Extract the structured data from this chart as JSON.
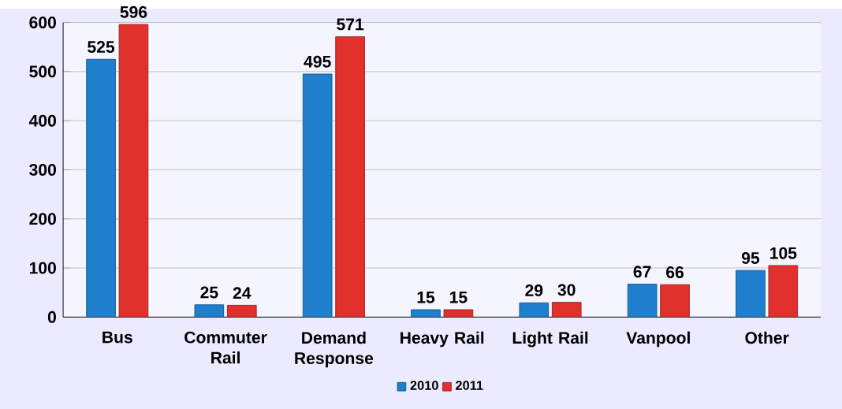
{
  "chart_data": {
    "type": "bar",
    "categories": [
      "Bus",
      "Commuter Rail",
      "Demand Response",
      "Heavy  Rail",
      "Light  Rail",
      "Vanpool",
      "Other"
    ],
    "series": [
      {
        "name": "2010",
        "color": "#1f7fcc",
        "values": [
          525,
          25,
          495,
          15,
          29,
          67,
          95
        ]
      },
      {
        "name": "2011",
        "color": "#e0312c",
        "values": [
          596,
          24,
          571,
          15,
          30,
          66,
          105
        ]
      }
    ],
    "ylim": [
      0,
      600
    ],
    "yticks": [
      0,
      100,
      200,
      300,
      400,
      500,
      600
    ],
    "grid": "y",
    "legend": "bottom",
    "data_labels": true
  }
}
